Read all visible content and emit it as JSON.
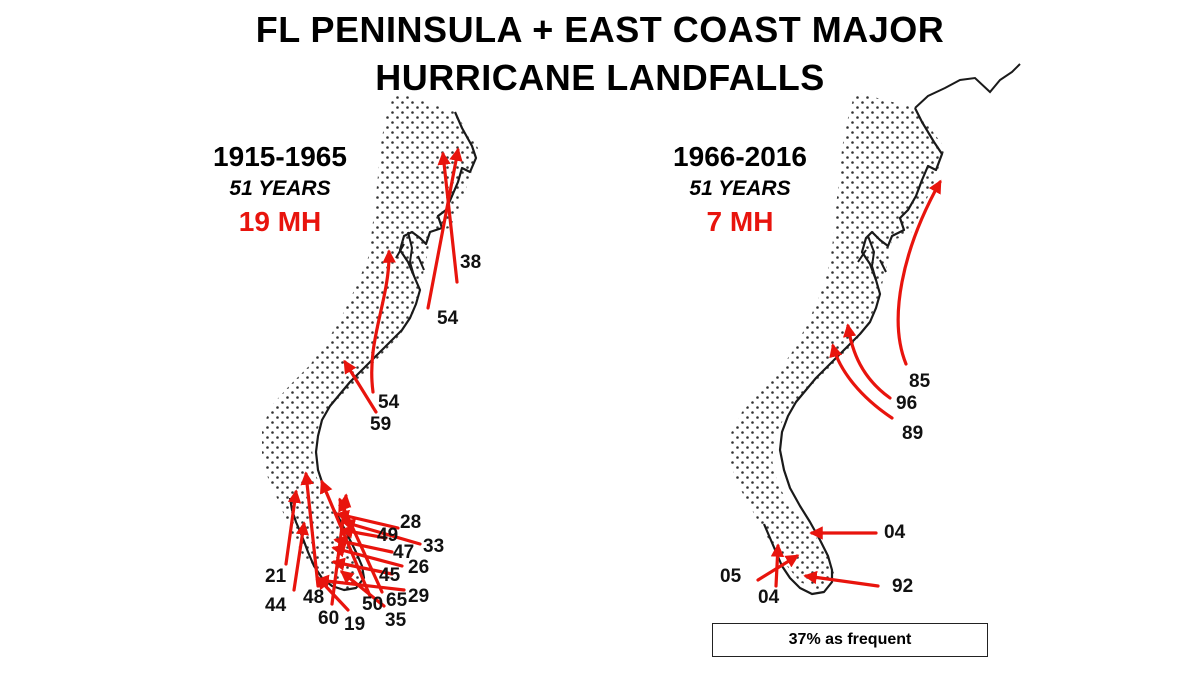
{
  "title": {
    "line1": "FL PENINSULA + EAST COAST MAJOR",
    "line2": "HURRICANE LANDFALLS"
  },
  "colors": {
    "arrow": "#e8140d",
    "count": "#e8140d",
    "coast": "#1a1a1a",
    "stipple": "#333333"
  },
  "periods": [
    {
      "years": "1915-1965",
      "span": "51 YEARS",
      "count": "19 MH",
      "labels": [
        "38",
        "54",
        "54",
        "59",
        "28",
        "49",
        "33",
        "47",
        "26",
        "45",
        "29",
        "65",
        "50",
        "35",
        "19",
        "60",
        "48",
        "44",
        "21"
      ]
    },
    {
      "years": "1966-2016",
      "span": "51 YEARS",
      "count": "7 MH",
      "labels": [
        "85",
        "96",
        "89",
        "04",
        "05",
        "04",
        "92"
      ]
    }
  ],
  "note": "37% as frequent"
}
